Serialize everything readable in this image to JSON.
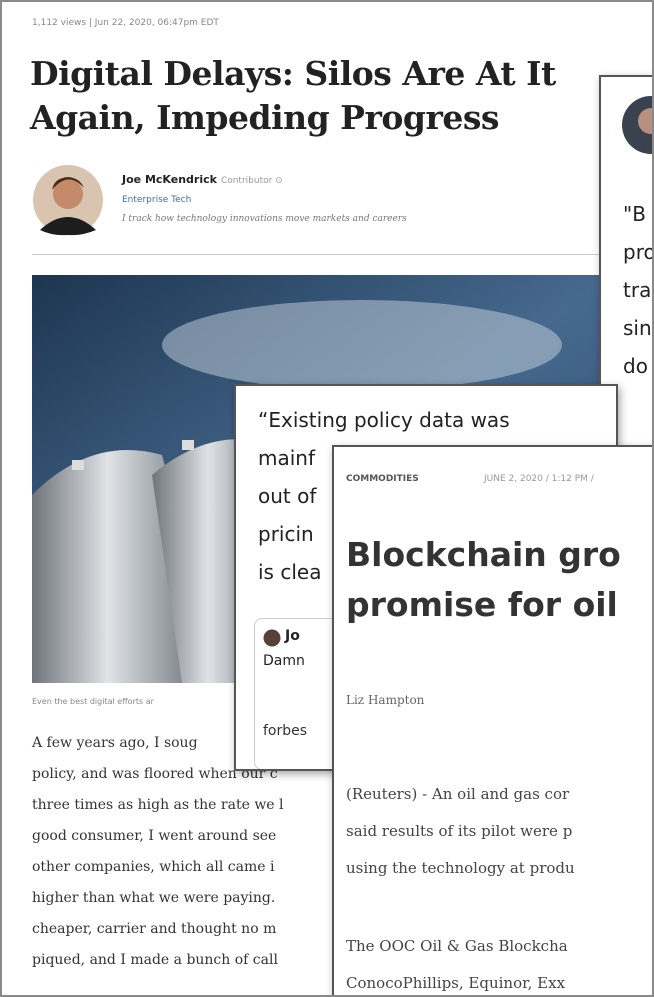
{
  "article": {
    "meta": "1,112 views | Jun 22, 2020, 06:47pm EDT",
    "title_lines": [
      "Digital Delays: Silos Are At It",
      "Again, Impeding Progress"
    ],
    "author": "Joe McKendrick",
    "role": "Contributor ⊙",
    "section": "Enterprise Tech",
    "bio": "I track how technology innovations move markets and careers",
    "caption": "Even the best digital efforts ar",
    "body_lines": [
      "A few years ago, I soug",
      "policy, and was floored when our c",
      "three times as high as the rate we l",
      "good consumer, I went around see",
      "other companies, which all came i",
      "higher than what we were paying.",
      "cheaper, carrier and thought no m",
      "piqued, and I made a bunch of call"
    ]
  },
  "quote_card_right": {
    "lines": [
      "\"B",
      "pro",
      "tra",
      "sin",
      "do"
    ]
  },
  "quote_card_middle": {
    "lines": [
      "“Existing policy data was",
      "mainf",
      "out of",
      "pricin",
      "is clea"
    ],
    "tweet_author": "Jo",
    "tweet_text": "Damn",
    "tweet_link": "forbes"
  },
  "reuters_card": {
    "category": "COMMODITIES",
    "date": "JUNE 2, 2020 / 1:12 PM /",
    "title_lines": [
      "Blockchain gro",
      "promise for oil"
    ],
    "author": "Liz Hampton",
    "paragraph1_lines": [
      "(Reuters) - An oil and gas cor",
      "said results of its pilot were p",
      "using the technology at produ"
    ],
    "paragraph2_lines": [
      "The OOC Oil & Gas Blockcha",
      "ConocoPhillips, Equinor, Exx"
    ]
  }
}
